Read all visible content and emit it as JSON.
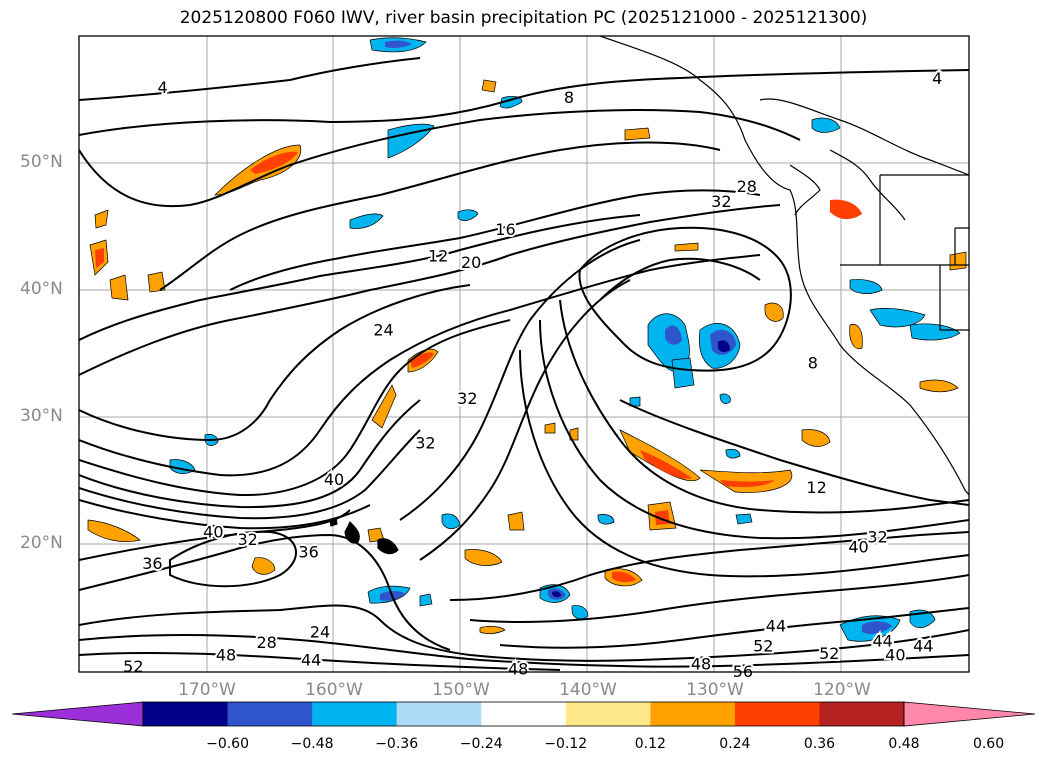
{
  "title": "2025120800 F060 IWV, river basin precipitation PC (2025121000 - 2025121300)",
  "map": {
    "lat_labels": [
      {
        "text": "50°N",
        "lat": 50
      },
      {
        "text": "40°N",
        "lat": 40
      },
      {
        "text": "30°N",
        "lat": 30
      },
      {
        "text": "20°N",
        "lat": 20
      }
    ],
    "lon_labels": [
      {
        "text": "170°W",
        "lon": -170
      },
      {
        "text": "160°W",
        "lon": -160
      },
      {
        "text": "150°W",
        "lon": -150
      },
      {
        "text": "140°W",
        "lon": -140
      },
      {
        "text": "130°W",
        "lon": -130
      },
      {
        "text": "120°W",
        "lon": -120
      }
    ],
    "contour_labels": [
      {
        "text": "4",
        "lon": -173.5,
        "lat": 56.0
      },
      {
        "text": "4",
        "lon": -112.5,
        "lat": 56.7
      },
      {
        "text": "8",
        "lon": -141.5,
        "lat": 55.2
      },
      {
        "text": "28",
        "lon": -127.5,
        "lat": 48.2
      },
      {
        "text": "32",
        "lon": -129.5,
        "lat": 47.0
      },
      {
        "text": "16",
        "lon": -146.5,
        "lat": 44.8
      },
      {
        "text": "20",
        "lon": -149.2,
        "lat": 42.2
      },
      {
        "text": "12",
        "lon": -151.8,
        "lat": 42.7
      },
      {
        "text": "24",
        "lon": -156.1,
        "lat": 36.9
      },
      {
        "text": "32",
        "lon": -149.5,
        "lat": 31.5
      },
      {
        "text": "32",
        "lon": -152.8,
        "lat": 28.0
      },
      {
        "text": "12",
        "lon": -122.0,
        "lat": 24.5
      },
      {
        "text": "40",
        "lon": -160.0,
        "lat": 25.1
      },
      {
        "text": "40",
        "lon": -169.5,
        "lat": 21.0
      },
      {
        "text": "32",
        "lon": -166.8,
        "lat": 20.4
      },
      {
        "text": "36",
        "lon": -162.0,
        "lat": 19.4
      },
      {
        "text": "36",
        "lon": -174.3,
        "lat": 18.5
      },
      {
        "text": "40",
        "lon": -118.7,
        "lat": 19.8
      },
      {
        "text": "32",
        "lon": -117.2,
        "lat": 20.6
      },
      {
        "text": "28",
        "lon": -165.3,
        "lat": 12.3
      },
      {
        "text": "24",
        "lon": -161.1,
        "lat": 13.1
      },
      {
        "text": "44",
        "lon": -125.2,
        "lat": 13.6
      },
      {
        "text": "52",
        "lon": -126.2,
        "lat": 12.0
      },
      {
        "text": "52",
        "lon": -121.0,
        "lat": 11.4
      },
      {
        "text": "44",
        "lon": -116.8,
        "lat": 12.4
      },
      {
        "text": "40",
        "lon": -115.8,
        "lat": 11.3
      },
      {
        "text": "44",
        "lon": -113.6,
        "lat": 12.0
      },
      {
        "text": "48",
        "lon": -168.5,
        "lat": 11.3
      },
      {
        "text": "44",
        "lon": -161.8,
        "lat": 10.9
      },
      {
        "text": "52",
        "lon": -175.8,
        "lat": 10.4
      },
      {
        "text": "48",
        "lon": -145.5,
        "lat": 10.2
      },
      {
        "text": "48",
        "lon": -131.1,
        "lat": 10.6
      },
      {
        "text": "56",
        "lon": -127.8,
        "lat": 10.0
      },
      {
        "text": "8",
        "lon": -122.3,
        "lat": 34.3
      }
    ]
  },
  "colorbar": {
    "colors": [
      "#9b30d9",
      "#000088",
      "#2f55cc",
      "#00b4f0",
      "#aadcf8",
      "#ffffff",
      "#ffe98a",
      "#ffa200",
      "#ff4000",
      "#b52020",
      "#ff88aa"
    ],
    "ticks": [
      "−0.60",
      "−0.48",
      "−0.36",
      "−0.24",
      "−0.12",
      "0.12",
      "0.24",
      "0.36",
      "0.48",
      "0.60"
    ]
  }
}
